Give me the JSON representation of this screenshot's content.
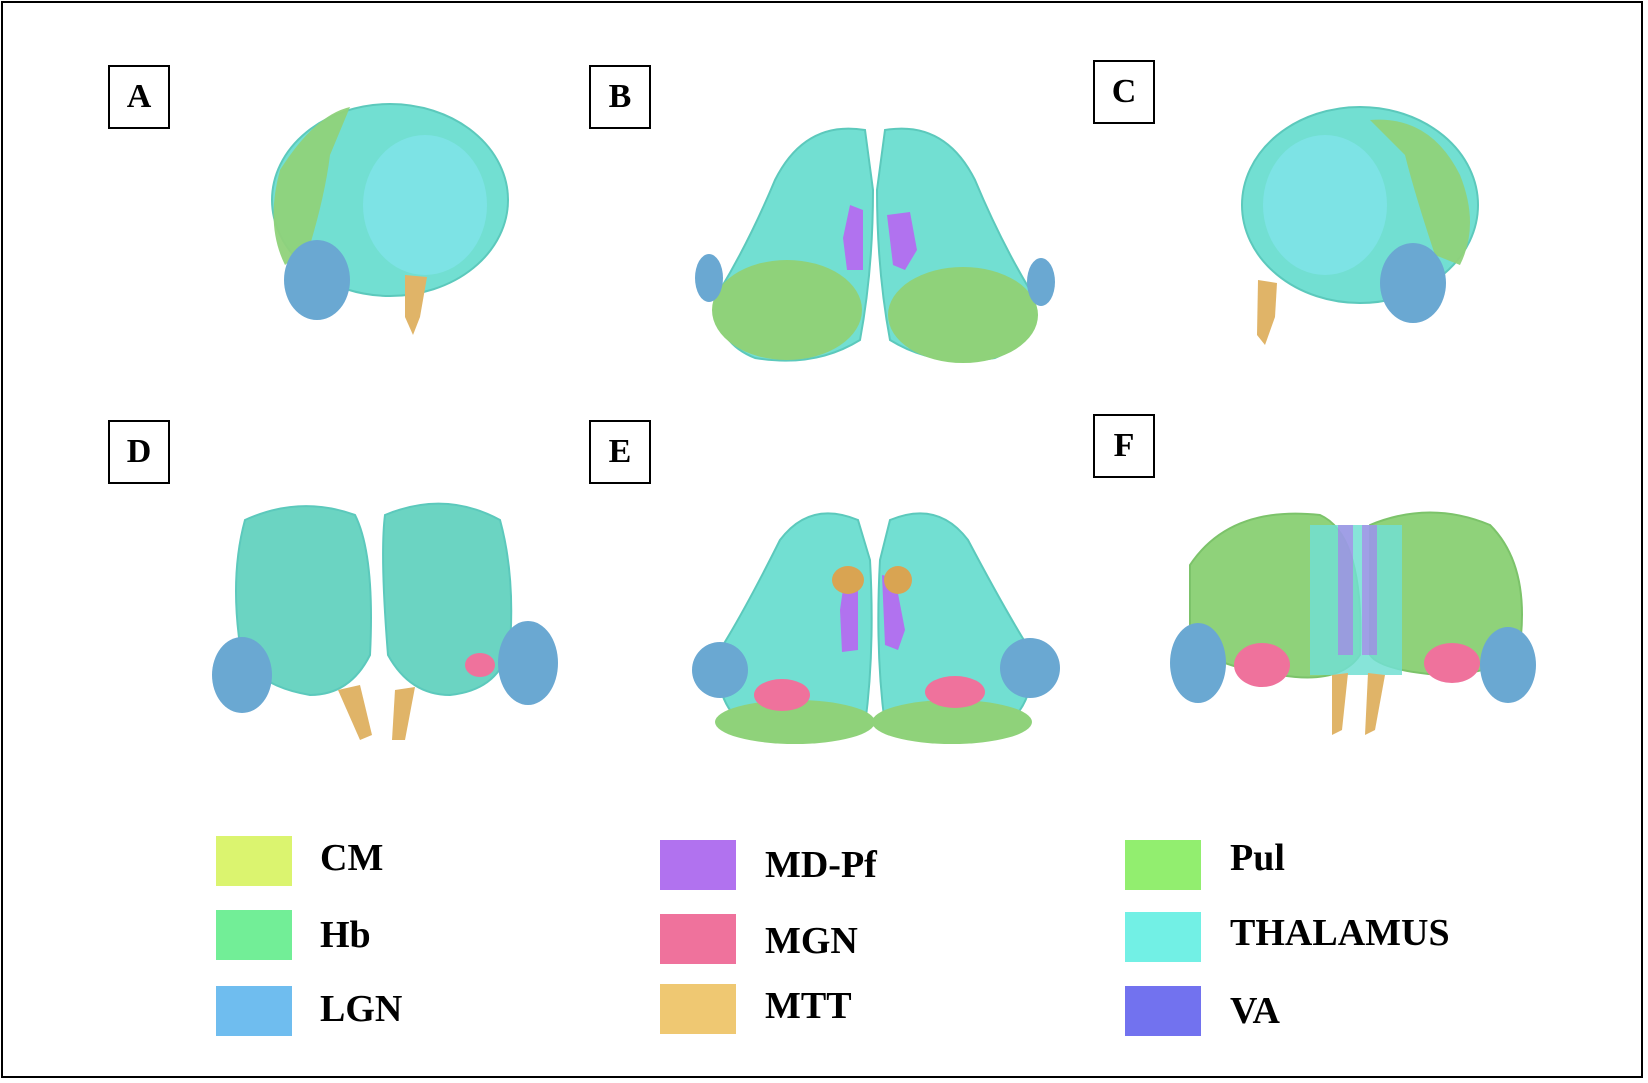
{
  "panels": [
    {
      "label": "A"
    },
    {
      "label": "B"
    },
    {
      "label": "C"
    },
    {
      "label": "D"
    },
    {
      "label": "E"
    },
    {
      "label": "F"
    }
  ],
  "legend": [
    {
      "label": "CM",
      "color": "#dbf46f"
    },
    {
      "label": "Hb",
      "color": "#72ee97"
    },
    {
      "label": "LGN",
      "color": "#6fbdef"
    },
    {
      "label": "MD-Pf",
      "color": "#b172ef"
    },
    {
      "label": "MGN",
      "color": "#ef729c"
    },
    {
      "label": "MTT",
      "color": "#efc872"
    },
    {
      "label": "Pul",
      "color": "#92ee6f"
    },
    {
      "label": "THALAMUS",
      "color": "#72f0e5"
    },
    {
      "label": "VA",
      "color": "#7272ef"
    }
  ]
}
